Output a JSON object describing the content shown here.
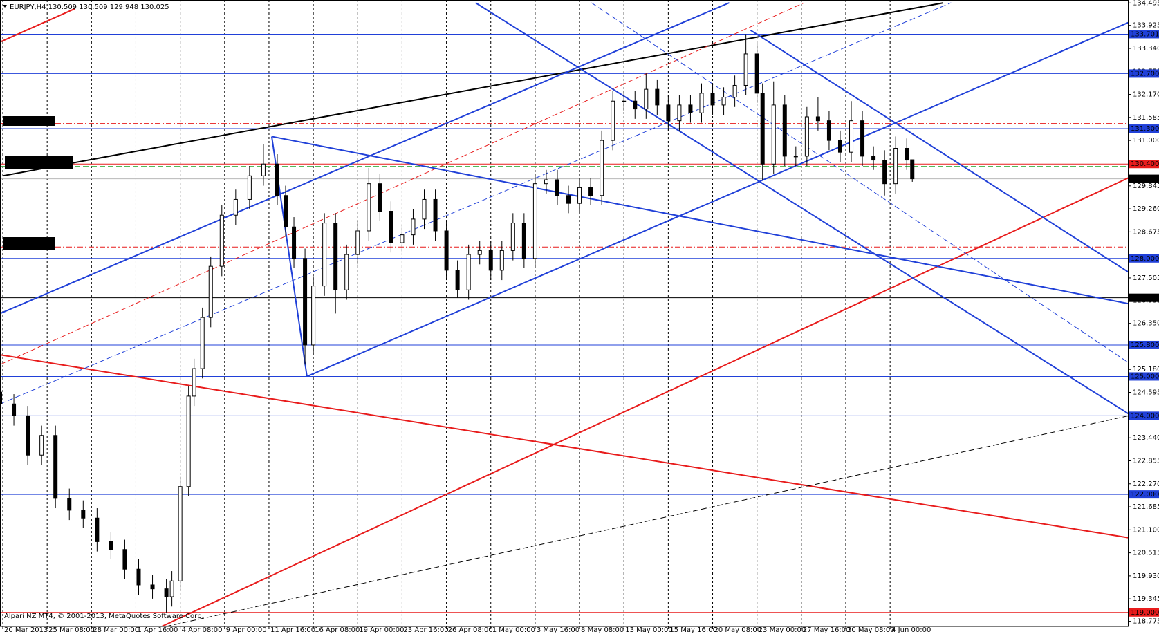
{
  "chart_data": {
    "type": "candlestick",
    "title": "EURJPY,H4  130.509 130.509 129.948 130.025",
    "footer": "Alpari NZ MT4, © 2001-2013, MetaQuotes Software Corp.",
    "grid": true,
    "bull_color": "#ffffff",
    "bear_color": "#000000",
    "xlim": [
      0,
      407
    ],
    "ylim": [
      118.775,
      134.495
    ],
    "xticks": [
      {
        "value": 1,
        "label": "20 Mar 2013"
      },
      {
        "value": 17,
        "label": "25 Mar 08:00"
      },
      {
        "value": 33,
        "label": "28 Mar 00:00"
      },
      {
        "value": 49,
        "label": "1 Apr 16:00"
      },
      {
        "value": 65,
        "label": "4 Apr 08:00"
      },
      {
        "value": 81,
        "label": "9 Apr 00:00"
      },
      {
        "value": 97,
        "label": "11 Apr 16:00"
      },
      {
        "value": 113,
        "label": "16 Apr 08:00"
      },
      {
        "value": 129,
        "label": "19 Apr 00:00"
      },
      {
        "value": 145,
        "label": "23 Apr 16:00"
      },
      {
        "value": 161,
        "label": "26 Apr 08:00"
      },
      {
        "value": 177,
        "label": "1 May 00:00"
      },
      {
        "value": 193,
        "label": "3 May 16:00"
      },
      {
        "value": 209,
        "label": "8 May 08:00"
      },
      {
        "value": 225,
        "label": "13 May 00:00"
      },
      {
        "value": 241,
        "label": "15 May 16:00"
      },
      {
        "value": 257,
        "label": "20 May 08:00"
      },
      {
        "value": 273,
        "label": "23 May 00:00"
      },
      {
        "value": 289,
        "label": "27 May 16:00"
      },
      {
        "value": 305,
        "label": "30 May 08:00"
      },
      {
        "value": 321,
        "label": "4 Jun 00:00"
      }
    ],
    "yticks": [
      134.495,
      133.925,
      {
        "value": 133.34,
        "label": "133.340"
      },
      132.755,
      {
        "value": 132.17,
        "label": "132.170"
      },
      131.585,
      {
        "value": 131.0,
        "label": "131.000"
      },
      129.845,
      {
        "value": 129.26,
        "label": "129.260"
      },
      128.675,
      127.505,
      126.935,
      {
        "value": 126.35,
        "label": "126.350"
      },
      {
        "value": 125.18,
        "label": "125.180"
      },
      124.595,
      {
        "value": 123.44,
        "label": "123.440"
      },
      122.855,
      {
        "value": 122.27,
        "label": "122.270"
      },
      121.685,
      {
        "value": 121.1,
        "label": "121.100"
      },
      120.515,
      {
        "value": 119.93,
        "label": "119.930"
      },
      119.345,
      118.775
    ],
    "x": [
      0,
      5,
      10,
      15,
      20,
      25,
      30,
      35,
      40,
      45,
      50,
      55,
      60,
      62,
      65,
      68,
      70,
      73,
      76,
      80,
      85,
      90,
      95,
      100,
      103,
      106,
      110,
      113,
      117,
      121,
      125,
      129,
      133,
      137,
      141,
      145,
      149,
      153,
      157,
      161,
      165,
      169,
      173,
      177,
      181,
      185,
      189,
      193,
      197,
      201,
      205,
      209,
      213,
      217,
      221,
      225,
      229,
      233,
      237,
      241,
      245,
      249,
      253,
      257,
      261,
      265,
      269,
      273,
      275,
      279,
      283,
      287,
      291,
      295,
      299,
      303,
      307,
      311,
      315,
      319,
      323,
      327,
      329
    ],
    "open": [
      124.6,
      124.3,
      124.0,
      123.0,
      123.5,
      121.9,
      121.6,
      121.4,
      120.8,
      120.6,
      120.1,
      119.7,
      119.6,
      119.4,
      119.8,
      122.2,
      124.5,
      125.2,
      126.5,
      127.8,
      129.1,
      129.5,
      130.1,
      130.4,
      129.6,
      128.8,
      128.0,
      125.8,
      127.3,
      128.9,
      127.2,
      128.1,
      128.7,
      129.9,
      129.2,
      128.4,
      128.6,
      129.0,
      129.5,
      128.7,
      127.7,
      127.2,
      128.1,
      128.2,
      127.7,
      128.2,
      128.9,
      128.0,
      129.9,
      130.0,
      129.6,
      129.4,
      129.8,
      129.6,
      131.0,
      132.0,
      132.0,
      131.8,
      132.3,
      131.9,
      131.5,
      131.9,
      131.7,
      132.2,
      131.9,
      132.1,
      132.4,
      133.2,
      132.2,
      130.4,
      131.9,
      130.6,
      130.6,
      131.6,
      131.5,
      131.0,
      130.7,
      131.5,
      130.6,
      130.5,
      129.9,
      130.8,
      130.509
    ],
    "high": [
      124.85,
      124.55,
      124.25,
      123.75,
      123.75,
      122.15,
      121.85,
      121.65,
      121.05,
      120.85,
      120.35,
      119.95,
      119.85,
      120.05,
      122.45,
      124.75,
      125.45,
      126.75,
      128.05,
      129.35,
      129.75,
      130.35,
      130.9,
      130.65,
      129.85,
      129.05,
      128.25,
      127.55,
      129.15,
      129.15,
      128.35,
      128.95,
      130.3,
      130.15,
      129.45,
      128.85,
      129.25,
      129.75,
      129.75,
      128.95,
      127.95,
      128.35,
      128.45,
      128.45,
      128.45,
      129.15,
      129.15,
      130.15,
      130.25,
      130.25,
      129.85,
      130.05,
      130.05,
      131.25,
      132.25,
      132.25,
      132.25,
      132.7,
      132.55,
      132.15,
      132.15,
      132.15,
      132.45,
      132.45,
      132.35,
      132.65,
      133.7,
      133.45,
      132.45,
      132.5,
      132.15,
      130.85,
      131.85,
      132.1,
      131.75,
      131.25,
      132.0,
      131.75,
      130.85,
      130.75,
      131.1,
      131.05,
      130.509
    ],
    "low": [
      124.05,
      123.75,
      122.75,
      122.75,
      121.65,
      121.35,
      121.15,
      120.55,
      120.35,
      119.85,
      119.45,
      119.35,
      119.0,
      119.15,
      119.55,
      121.95,
      124.25,
      124.95,
      126.25,
      127.55,
      128.85,
      129.25,
      129.85,
      129.35,
      128.55,
      127.75,
      125.3,
      125.55,
      127.05,
      126.6,
      126.95,
      127.85,
      128.45,
      128.95,
      128.15,
      128.15,
      128.35,
      128.75,
      128.45,
      127.45,
      127.0,
      126.95,
      127.85,
      127.45,
      127.45,
      127.95,
      127.75,
      127.75,
      129.65,
      129.35,
      129.15,
      129.15,
      129.35,
      129.35,
      130.75,
      131.75,
      131.55,
      131.55,
      131.65,
      131.25,
      131.25,
      131.45,
      131.45,
      131.65,
      131.65,
      131.85,
      132.15,
      131.95,
      130.0,
      130.15,
      130.35,
      130.35,
      130.35,
      131.25,
      130.75,
      130.45,
      130.45,
      130.35,
      130.25,
      129.6,
      129.65,
      130.25,
      129.948
    ],
    "close": [
      124.3,
      124.0,
      123.0,
      123.5,
      121.9,
      121.6,
      121.4,
      120.8,
      120.6,
      120.1,
      119.7,
      119.6,
      119.4,
      119.8,
      122.2,
      124.5,
      125.2,
      126.5,
      127.8,
      129.1,
      129.5,
      130.1,
      130.4,
      129.6,
      128.8,
      128.0,
      125.8,
      127.3,
      128.9,
      127.2,
      128.1,
      128.7,
      129.9,
      129.2,
      128.4,
      128.6,
      129.0,
      129.5,
      128.7,
      127.7,
      127.2,
      128.1,
      128.2,
      127.7,
      128.2,
      128.9,
      128.0,
      129.9,
      130.0,
      129.6,
      129.4,
      129.8,
      129.6,
      131.0,
      132.0,
      132.0,
      131.8,
      132.3,
      131.9,
      131.5,
      131.9,
      131.7,
      132.2,
      131.9,
      132.1,
      132.4,
      133.2,
      132.2,
      130.4,
      131.9,
      130.6,
      130.6,
      131.6,
      131.5,
      131.0,
      130.7,
      131.5,
      130.6,
      130.5,
      129.9,
      130.8,
      130.5,
      130.025
    ],
    "levels": [
      {
        "value": 133.701,
        "color": "#2040d8",
        "style": "solid"
      },
      {
        "value": 132.7,
        "label": "132.700",
        "color": "#2040d8",
        "style": "solid"
      },
      {
        "value": 131.43,
        "color": "#e81c1c",
        "style": "dashdot"
      },
      {
        "value": 131.3,
        "label": "131.300",
        "color": "#2040d8",
        "style": "solid"
      },
      {
        "value": 130.4,
        "label": "130.400",
        "color": "#e81c1c",
        "style": "solid"
      },
      {
        "value": 130.34,
        "color": "#3cb043",
        "style": "dashed"
      },
      {
        "value": 130.025,
        "color": "#000000",
        "line_color": "#b8b8b8",
        "style": "solid"
      },
      {
        "value": 128.29,
        "color": "#e81c1c",
        "style": "dashdot"
      },
      {
        "value": 128.0,
        "label": "128.000",
        "color": "#2040d8",
        "style": "solid"
      },
      {
        "value": 127.0,
        "label": "127.000",
        "color": "#000000",
        "style": "solid"
      },
      {
        "value": 125.8,
        "label": "125.800",
        "color": "#2040d8",
        "style": "solid"
      },
      {
        "value": 125.0,
        "label": "125.000",
        "color": "#2040d8",
        "style": "solid"
      },
      {
        "value": 124.0,
        "label": "124.000",
        "color": "#2040d8",
        "style": "solid"
      },
      {
        "value": 122.0,
        "label": "122.000",
        "color": "#2040d8",
        "style": "solid"
      },
      {
        "value": 119.0,
        "label": "119.000",
        "color": "#e81c1c",
        "style": "solid"
      }
    ],
    "trendlines": [
      {
        "x": [
          1,
          340
        ],
        "y": [
          130.1,
          134.495
        ],
        "color": "#000000",
        "style": "thick"
      },
      {
        "x": [
          0,
          27
        ],
        "y": [
          133.5,
          134.35
        ],
        "color": "#e81c1c",
        "style": "thick"
      },
      {
        "x": [
          57,
          407
        ],
        "y": [
          118.6,
          130.05
        ],
        "color": "#e81c1c",
        "style": "thick"
      },
      {
        "x": [
          0,
          407
        ],
        "y": [
          125.55,
          120.9
        ],
        "color": "#e81c1c",
        "style": "thick"
      },
      {
        "x": [
          0,
          290
        ],
        "y": [
          125.3,
          134.5
        ],
        "color": "#e81c1c",
        "style": "dashed"
      },
      {
        "x": [
          0,
          263
        ],
        "y": [
          126.6,
          134.5
        ],
        "color": "#2040d8",
        "style": "thick"
      },
      {
        "x": [
          110.7,
          407
        ],
        "y": [
          125.0,
          134.0
        ],
        "color": "#2040d8",
        "style": "thick"
      },
      {
        "x": [
          0,
          343
        ],
        "y": [
          124.3,
          134.5
        ],
        "color": "#2040d8",
        "style": "dashed"
      },
      {
        "x": [
          98,
          407
        ],
        "y": [
          131.1,
          126.85
        ],
        "color": "#2040d8",
        "style": "thick"
      },
      {
        "x": [
          171.5,
          407
        ],
        "y": [
          134.5,
          124.05
        ],
        "color": "#2040d8",
        "style": "thick"
      },
      {
        "x": [
          270.7,
          407
        ],
        "y": [
          133.8,
          127.65
        ],
        "color": "#2040d8",
        "style": "thick"
      },
      {
        "x": [
          213.3,
          407
        ],
        "y": [
          134.5,
          125.35
        ],
        "color": "#2040d8",
        "style": "dashed"
      },
      {
        "x": [
          57,
          407
        ],
        "y": [
          118.6,
          124.0
        ],
        "color": "#000000",
        "style": "dashed"
      },
      {
        "x": [
          98,
          110.7
        ],
        "y": [
          131.1,
          125.0
        ],
        "color": "#2040d8",
        "style": "thick"
      }
    ]
  }
}
